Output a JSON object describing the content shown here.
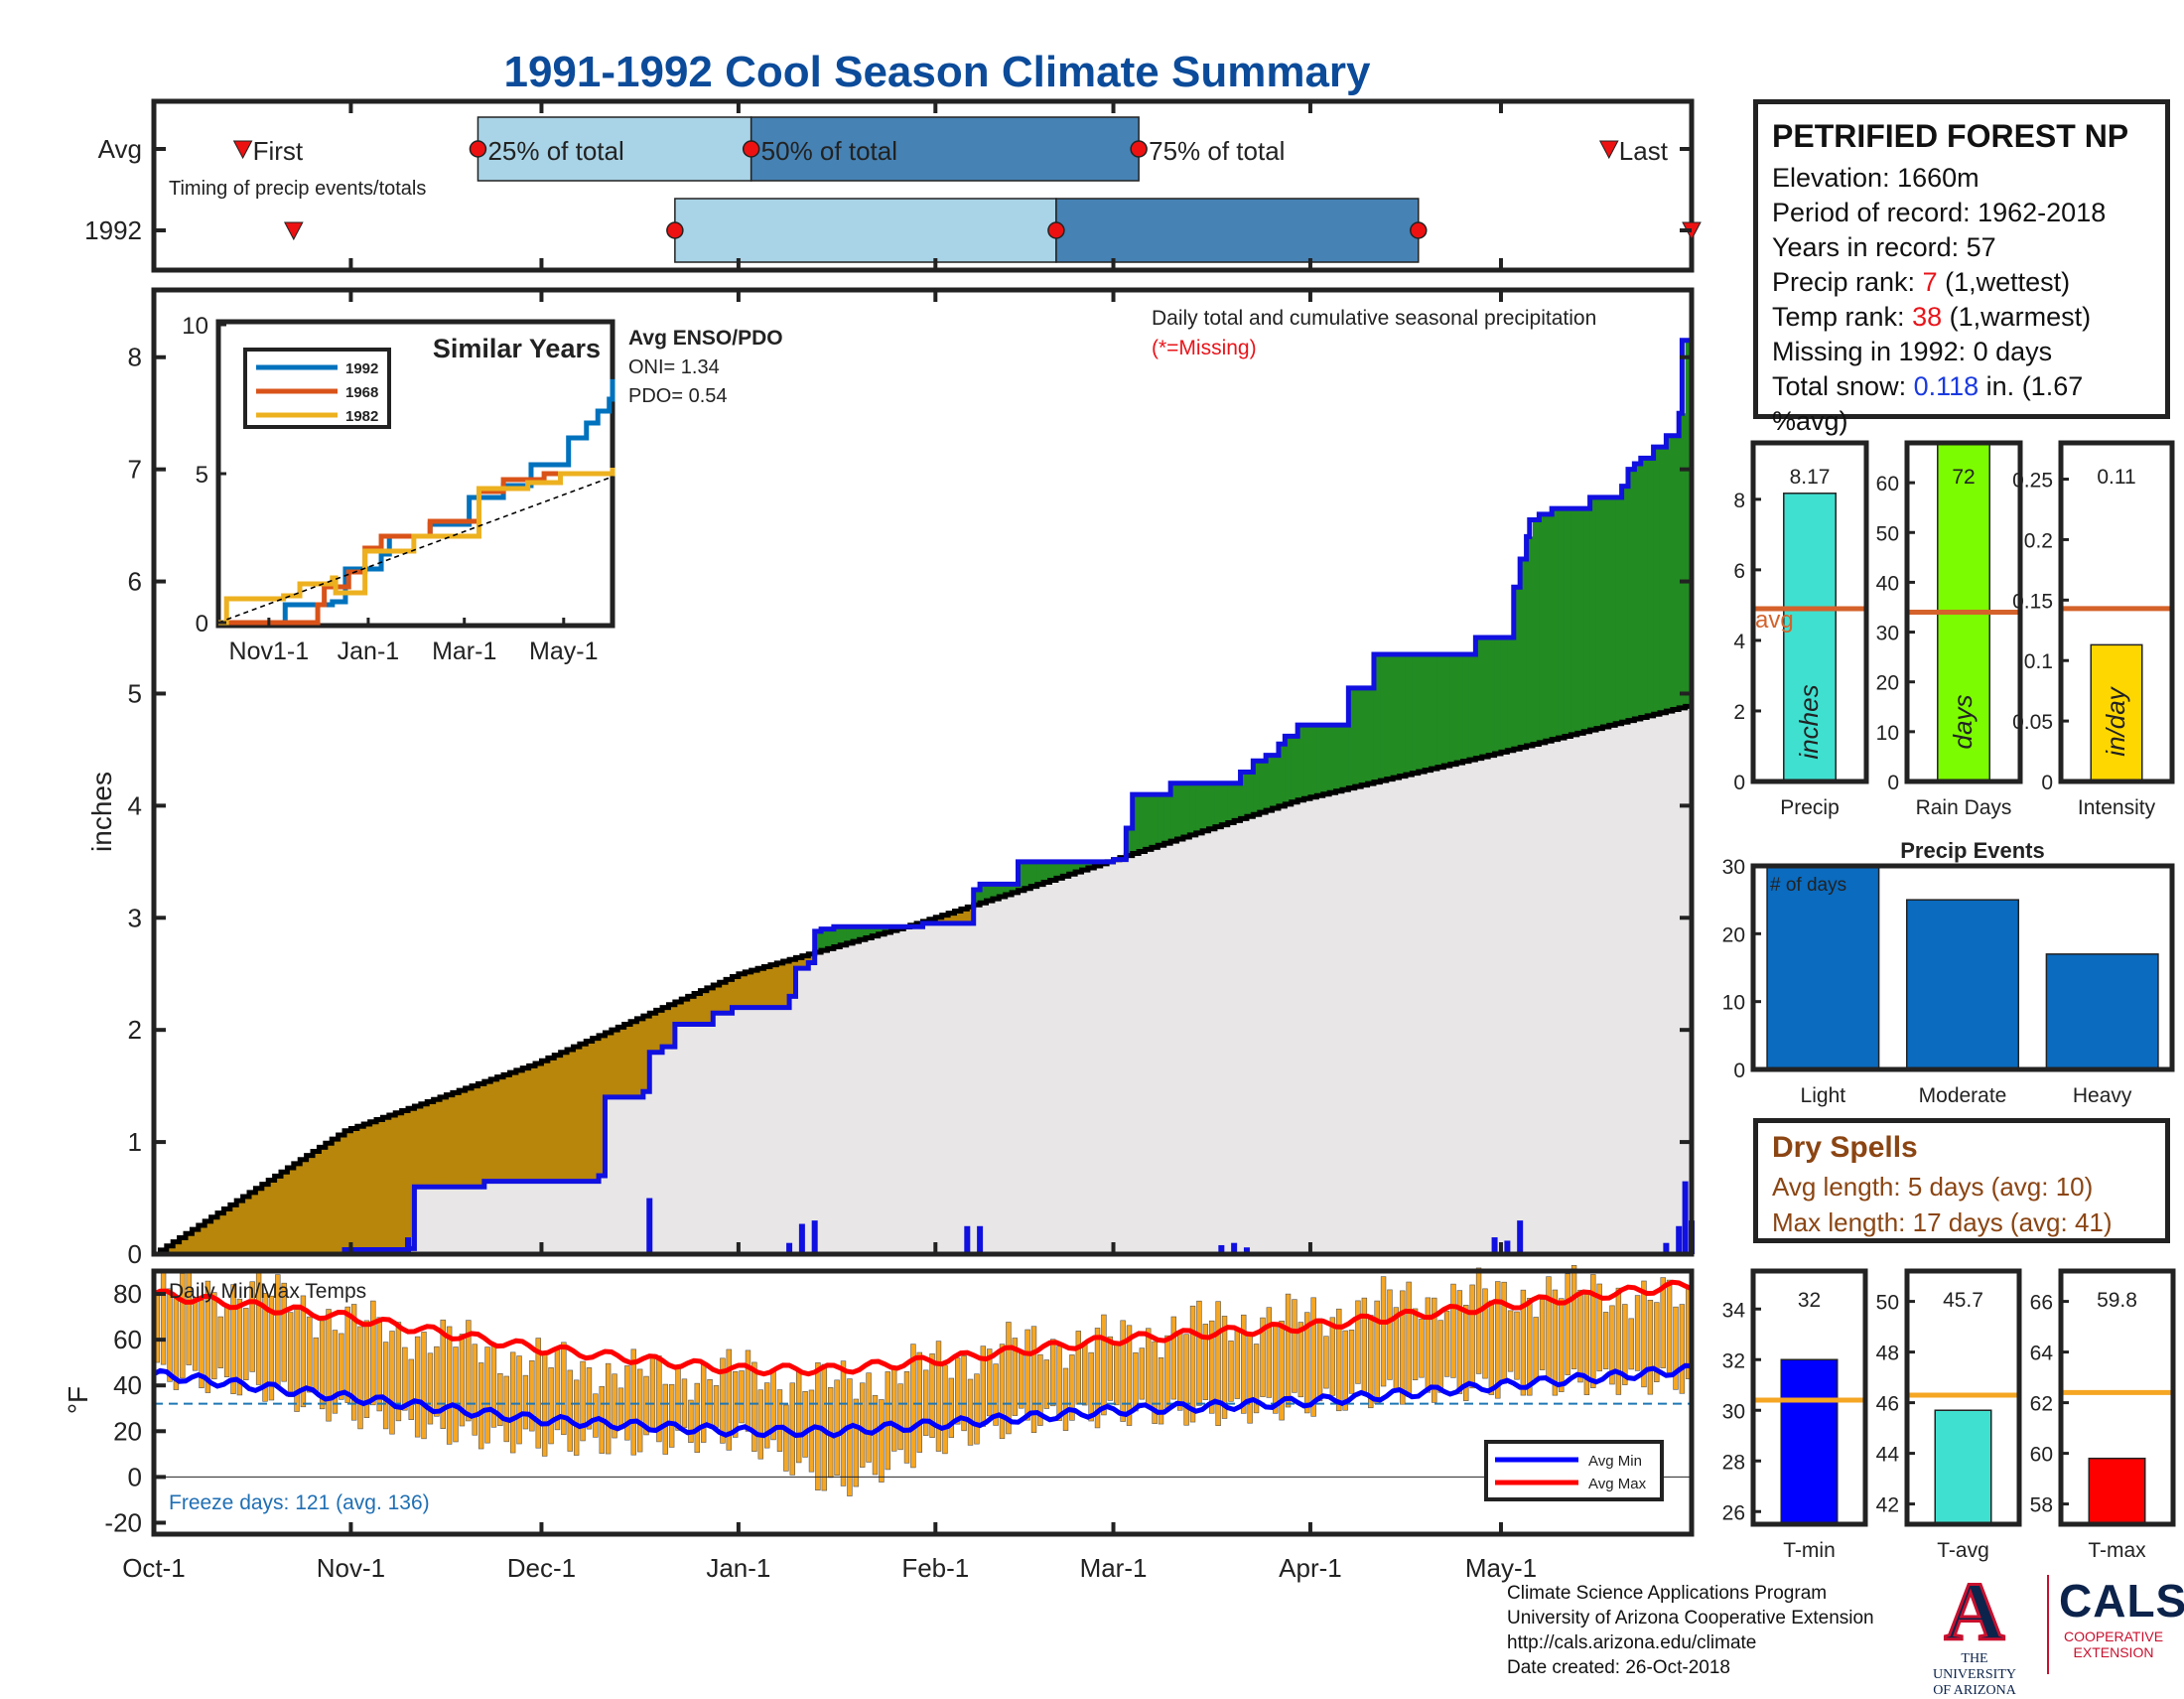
{
  "title": "1991-1992 Cool Season Climate Summary",
  "timing": {
    "row_labels": [
      "Avg",
      "1992"
    ],
    "label_first": "First",
    "label_25": "25% of total",
    "label_50": "50% of total",
    "label_75": "75% of total",
    "label_last": "Last",
    "note": "Timing of precip events/totals",
    "avg": {
      "first": "Oct-15",
      "p25": "Nov-21",
      "p50": "Jan-03",
      "p75": "Mar-05",
      "last": "May-18"
    },
    "y1992": {
      "first": "Oct-23",
      "p25": "Dec-22",
      "p50": "Feb-20",
      "p75": "Apr-18",
      "last": "Jun-01"
    }
  },
  "precip_panel": {
    "ylabel": "inches",
    "caption": "Daily total and cumulative seasonal precipitation",
    "missing_note": "(*=Missing)",
    "enso_title": "Avg ENSO/PDO",
    "oni": "ONI= 1.34",
    "pdo": "PDO= 0.54",
    "inset_title": "Similar Years",
    "inset_xticks": [
      "Nov1-1",
      "Jan-1",
      "Mar-1",
      "May-1"
    ]
  },
  "temp_panel": {
    "ylabel": "°F",
    "label": "Daily Min/Max Temps",
    "freeze_note": "Freeze days: 121 (avg. 136)",
    "legend_min": "Avg Min",
    "legend_max": "Avg Max"
  },
  "station": {
    "name": "PETRIFIED FOREST NP",
    "elevation": "Elevation: 1660m",
    "period": "Period of record: 1962-2018",
    "years": "Years in record: 57",
    "precip_rank_label": "Precip rank:",
    "precip_rank": "7",
    "precip_rank_note": "(1,wettest)",
    "temp_rank_label": "Temp rank:",
    "temp_rank": "38",
    "temp_rank_note": "(1,warmest)",
    "missing": "Missing in 1992: 0 days",
    "snow_label": "Total snow:",
    "snow_value": "0.118",
    "snow_rest": "in. (1.67",
    "snow_rest2": "%avg)"
  },
  "summary_bars": {
    "avg_label": "avg",
    "precip": {
      "label": "Precip",
      "unit": "inches",
      "value": 8.17,
      "value_text": "8.17",
      "avg": 4.9,
      "ylim": [
        0,
        9.6
      ],
      "yticks": [
        0,
        2,
        4,
        6,
        8
      ],
      "color": "#40e0d0"
    },
    "rain_days": {
      "label": "Rain Days",
      "unit": "days",
      "value": 72,
      "value_text": "72",
      "avg": 34,
      "ylim": [
        0,
        68
      ],
      "yticks": [
        0,
        10,
        20,
        30,
        40,
        50,
        60
      ],
      "color": "#7cfc00"
    },
    "intensity": {
      "label": "Intensity",
      "unit": "in/day",
      "value": 0.113,
      "value_text": "0.11",
      "avg": 0.143,
      "ylim": [
        0,
        0.28
      ],
      "ytick_labels": [
        "0",
        "0.05",
        "0.1",
        "0.15",
        "0.2",
        "0.25"
      ],
      "yticks": [
        0,
        0.05,
        0.1,
        0.15,
        0.2,
        0.25
      ],
      "color": "#ffd700"
    }
  },
  "precip_events": {
    "title": "Precip Events",
    "annotation": "# of days",
    "categories": [
      "Light",
      "Moderate",
      "Heavy"
    ],
    "values": [
      30,
      25,
      17
    ],
    "ylim": [
      0,
      30
    ],
    "yticks": [
      0,
      10,
      20,
      30
    ],
    "color": "#0a6bbf"
  },
  "dry_spells": {
    "title": "Dry Spells",
    "avg_length": "Avg length: 5 days (avg: 10)",
    "max_length": "Max length: 17 days (avg: 41)"
  },
  "temp_bars": [
    {
      "label": "T-min",
      "value": 32,
      "value_text": "32",
      "avg": 30.4,
      "ylim": [
        25.5,
        35.5
      ],
      "yticks": [
        26,
        28,
        30,
        32,
        34
      ],
      "color": "#0000ff"
    },
    {
      "label": "T-avg",
      "value": 45.7,
      "value_text": "45.7",
      "avg": 46.3,
      "ylim": [
        41.2,
        51.2
      ],
      "yticks": [
        42,
        44,
        46,
        48,
        50
      ],
      "color": "#40e0d0"
    },
    {
      "label": "T-max",
      "value": 59.8,
      "value_text": "59.8",
      "avg": 62.4,
      "ylim": [
        57.2,
        67.2
      ],
      "yticks": [
        58,
        60,
        62,
        64,
        66
      ],
      "color": "#ff0000"
    }
  ],
  "footer": {
    "line1": "Climate Science Applications Program",
    "line2": "University of Arizona Cooperative Extension",
    "line3": "http://cals.arizona.edu/climate",
    "line4": " Date created: 26-Oct-2018"
  },
  "logos": {
    "uofa_letter": "A",
    "uofa_text1": "THE UNIVERSITY",
    "uofa_text2": "OF ARIZONA",
    "cals_text": "CALS",
    "cals_sub1": "COOPERATIVE",
    "cals_sub2": "EXTENSION"
  },
  "chart_data": [
    {
      "type": "area",
      "title": "Daily total and cumulative seasonal precipitation",
      "ylabel": "inches",
      "ylim": [
        0,
        8.6
      ],
      "yticks": [
        0,
        1,
        2,
        3,
        4,
        5,
        6,
        7,
        8
      ],
      "x_tick_labels": [
        "Oct-1",
        "Nov-1",
        "Dec-1",
        "Jan-1",
        "Feb-1",
        "Mar-1",
        "Apr-1",
        "May-1"
      ],
      "x_tick_days": [
        0,
        31,
        61,
        92,
        123,
        151,
        182,
        212
      ],
      "x_range_days": [
        0,
        242
      ],
      "colors": {
        "above_avg": "#228b22",
        "below_avg": "#b8860b",
        "avg_fill": "#e8e6e6",
        "obs_line": "#1010e0",
        "avg_line": "#000000"
      },
      "series": [
        {
          "name": "cumulative 1992",
          "x_days": [
            0,
            30,
            40,
            41,
            52,
            70,
            71,
            77,
            78,
            80,
            82,
            88,
            91,
            100,
            101,
            103,
            104,
            105,
            107,
            121,
            128,
            129,
            130,
            136,
            151,
            153,
            154,
            160,
            171,
            173,
            175,
            177,
            178,
            180,
            188,
            192,
            198,
            205,
            208,
            214,
            215,
            216,
            216.5,
            218,
            220,
            226,
            231,
            232,
            233,
            234,
            236,
            238,
            240,
            240.5,
            242
          ],
          "values": [
            0,
            0.04,
            0.05,
            0.6,
            0.65,
            0.7,
            1.4,
            1.45,
            1.8,
            1.85,
            2.05,
            2.15,
            2.2,
            2.3,
            2.55,
            2.6,
            2.88,
            2.9,
            2.92,
            2.95,
            2.95,
            3.25,
            3.3,
            3.5,
            3.52,
            3.8,
            4.1,
            4.2,
            4.3,
            4.4,
            4.45,
            4.55,
            4.62,
            4.72,
            5.05,
            5.35,
            5.35,
            5.35,
            5.5,
            5.95,
            6.2,
            6.4,
            6.55,
            6.6,
            6.65,
            6.75,
            6.85,
            7.0,
            7.05,
            7.1,
            7.2,
            7.3,
            7.5,
            8.15,
            8.17
          ]
        },
        {
          "name": "average cumulative",
          "x_days": [
            0,
            30,
            60,
            92,
            120,
            150,
            180,
            210,
            242
          ],
          "values": [
            0,
            1.1,
            1.7,
            2.5,
            2.95,
            3.5,
            4.05,
            4.45,
            4.9
          ]
        },
        {
          "name": "daily total",
          "x_days": [
            40,
            78,
            100,
            102,
            104,
            128,
            130,
            168,
            170,
            172,
            211,
            213,
            215,
            238,
            240,
            241,
            242
          ],
          "values": [
            0.15,
            0.5,
            0.1,
            0.27,
            0.3,
            0.25,
            0.25,
            0.08,
            0.1,
            0.06,
            0.15,
            0.12,
            0.3,
            0.1,
            0.25,
            0.65,
            0.3
          ]
        }
      ]
    },
    {
      "type": "line",
      "title": "Similar Years",
      "ylim": [
        0,
        10
      ],
      "yticks": [
        0,
        5,
        10
      ],
      "x_tick_labels": [
        "Nov1-1",
        "Jan-1",
        "Mar-1",
        "May-1"
      ],
      "x_tick_days": [
        31,
        92,
        151,
        212
      ],
      "x_range_days": [
        0,
        242
      ],
      "series": [
        {
          "name": "1992",
          "color": "#0072bd",
          "x_days": [
            0,
            40,
            41,
            70,
            78,
            100,
            105,
            130,
            154,
            175,
            192,
            215,
            226,
            233,
            240,
            242
          ],
          "values": [
            0,
            0,
            0.6,
            0.7,
            1.8,
            2.3,
            2.9,
            3.3,
            4.2,
            4.6,
            5.3,
            6.2,
            6.7,
            7.1,
            7.5,
            8.17
          ]
        },
        {
          "name": "1968",
          "color": "#d95319",
          "x_days": [
            0,
            60,
            61,
            65,
            80,
            90,
            100,
            130,
            160,
            175,
            200,
            242
          ],
          "values": [
            0,
            0,
            0.6,
            1.2,
            1.7,
            2.5,
            2.9,
            3.4,
            4.4,
            4.8,
            5.0,
            5.1
          ]
        },
        {
          "name": "1982",
          "color": "#edb120",
          "x_days": [
            0,
            5,
            40,
            50,
            70,
            72,
            90,
            120,
            160,
            190,
            210,
            242
          ],
          "values": [
            0,
            0.8,
            0.9,
            1.3,
            1.5,
            1.0,
            2.4,
            2.9,
            4.5,
            4.7,
            5.0,
            5.2
          ]
        },
        {
          "name": "avg",
          "color": "#000000",
          "x_days": [
            0,
            242
          ],
          "values": [
            0,
            4.9
          ]
        }
      ]
    },
    {
      "type": "bar",
      "title": "Daily Min/Max Temps",
      "ylabel": "°F",
      "ylim": [
        -25,
        90
      ],
      "yticks": [
        -20,
        0,
        20,
        40,
        60,
        80
      ],
      "freeze_line": 32,
      "x_tick_labels": [
        "Oct-1",
        "Nov-1",
        "Dec-1",
        "Jan-1",
        "Feb-1",
        "Mar-1",
        "Apr-1",
        "May-1"
      ],
      "x_tick_days": [
        0,
        31,
        61,
        92,
        123,
        151,
        182,
        212
      ],
      "x_range_days": [
        0,
        242
      ],
      "colors": {
        "bars": "#f5a623",
        "avg_min": "#0000ff",
        "avg_max": "#ff0000",
        "freeze": "#1f77b4"
      },
      "series": [
        {
          "name": "daily max (anchors)",
          "x_days": [
            0,
            15,
            30,
            45,
            61,
            76,
            92,
            107,
            123,
            137,
            151,
            166,
            182,
            197,
            212,
            227,
            242
          ],
          "values": [
            80,
            82,
            68,
            60,
            50,
            45,
            46,
            40,
            50,
            58,
            60,
            68,
            70,
            78,
            80,
            82,
            75
          ]
        },
        {
          "name": "daily min (anchors)",
          "x_days": [
            0,
            15,
            30,
            45,
            61,
            76,
            92,
            107,
            123,
            137,
            151,
            166,
            182,
            197,
            212,
            227,
            242
          ],
          "values": [
            45,
            40,
            28,
            20,
            15,
            15,
            18,
            -5,
            15,
            25,
            28,
            28,
            32,
            38,
            40,
            42,
            42
          ]
        },
        {
          "name": "Avg Max",
          "x_days": [
            0,
            30,
            61,
            92,
            107,
            123,
            151,
            182,
            212,
            242
          ],
          "values": [
            80,
            70,
            56,
            47,
            47,
            51,
            60,
            66,
            75,
            84
          ]
        },
        {
          "name": "Avg Min",
          "x_days": [
            0,
            30,
            61,
            92,
            107,
            123,
            151,
            182,
            212,
            242
          ],
          "values": [
            45,
            35,
            25,
            20,
            20,
            23,
            29,
            33,
            40,
            47
          ]
        }
      ]
    }
  ]
}
